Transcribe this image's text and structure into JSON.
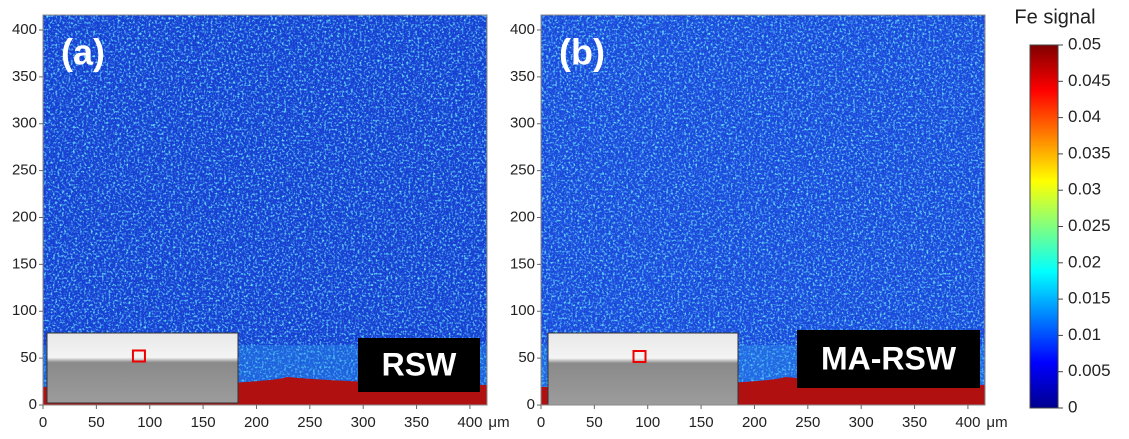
{
  "chart_data": [
    {
      "type": "heatmap",
      "panel_label": "(a)",
      "annotation": "RSW",
      "x_unit": "μm",
      "xlim": [
        0,
        416
      ],
      "ylim": [
        0,
        416
      ],
      "xticks": [
        0,
        50,
        100,
        150,
        200,
        250,
        300,
        350,
        400
      ],
      "yticks": [
        0,
        50,
        100,
        150,
        200,
        250,
        300,
        350,
        400
      ]
    },
    {
      "type": "heatmap",
      "panel_label": "(b)",
      "annotation": "MA-RSW",
      "x_unit": "μm",
      "xlim": [
        0,
        416
      ],
      "ylim": [
        0,
        416
      ],
      "xticks": [
        0,
        50,
        100,
        150,
        200,
        250,
        300,
        350,
        400
      ],
      "yticks": [
        0,
        50,
        100,
        150,
        200,
        250,
        300,
        350,
        400
      ]
    }
  ],
  "colorbar": {
    "title": "Fe signal",
    "lim": [
      0,
      0.05
    ],
    "ticks": [
      0,
      0.005,
      0.01,
      0.015,
      0.02,
      0.025,
      0.03,
      0.035,
      0.04,
      0.045,
      0.05
    ],
    "colormap": [
      "#00008f",
      "#0000ff",
      "#0080ff",
      "#00ffff",
      "#80ff80",
      "#ffff00",
      "#ff8000",
      "#ff0000",
      "#800000"
    ]
  }
}
